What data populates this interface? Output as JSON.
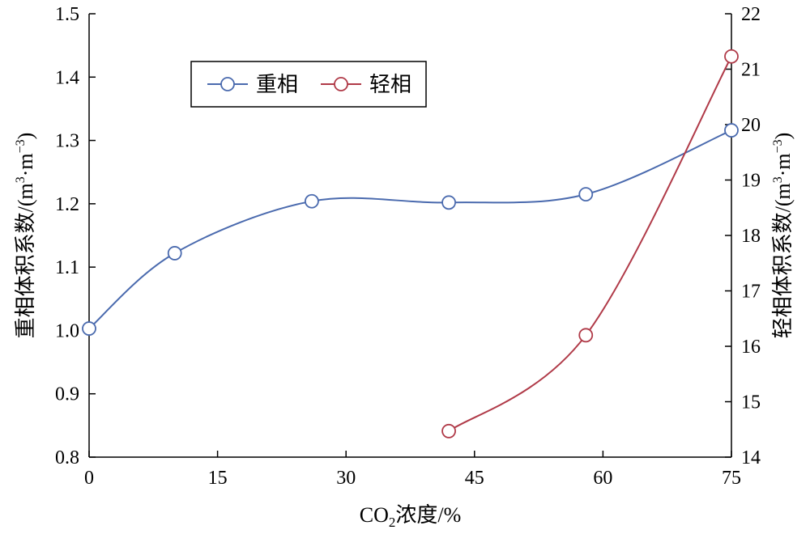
{
  "chart_data": {
    "type": "line",
    "xlabel": {
      "prefix": "CO",
      "subscript": "2",
      "suffix": "浓度/%"
    },
    "ylabel_left": {
      "text": "重相体积系数/(m",
      "sup1": "3",
      "mid": "·m",
      "sup2": "−3",
      "end": ")"
    },
    "ylabel_right": {
      "text": "轻相体积系数/(m",
      "sup1": "3",
      "mid": "·m",
      "sup2": "−3",
      "end": ")"
    },
    "xlim": [
      0,
      75
    ],
    "ylim_left": [
      0.8,
      1.5
    ],
    "ylim_right": [
      14,
      22
    ],
    "x_ticks": [
      "0",
      "15",
      "30",
      "45",
      "60",
      "75"
    ],
    "y_left_ticks": [
      "0.8",
      "0.9",
      "1.0",
      "1.1",
      "1.2",
      "1.3",
      "1.4",
      "1.5"
    ],
    "y_right_ticks": [
      "14",
      "15",
      "16",
      "17",
      "18",
      "19",
      "20",
      "21",
      "22"
    ],
    "legend_position": "top-left",
    "series": [
      {
        "name": "重相",
        "axis": "left",
        "color": "#4a6aae",
        "x": [
          0,
          10,
          26,
          42,
          58,
          75
        ],
        "y": [
          1.003,
          1.122,
          1.204,
          1.202,
          1.215,
          1.316
        ]
      },
      {
        "name": "轻相",
        "axis": "right",
        "color": "#b03a48",
        "x": [
          42,
          58,
          75
        ],
        "y": [
          14.47,
          16.2,
          21.23
        ]
      }
    ]
  }
}
